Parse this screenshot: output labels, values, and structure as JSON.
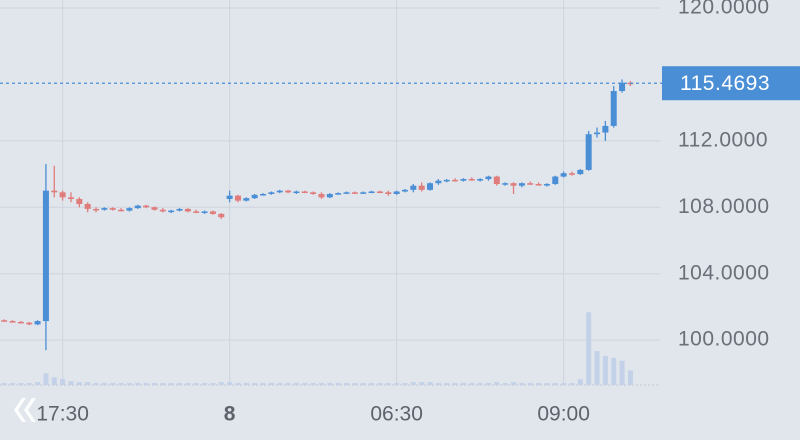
{
  "chart_data": {
    "type": "candlestick",
    "categories": [
      null,
      null,
      null,
      null,
      null,
      null,
      null,
      "17:30",
      null,
      null,
      null,
      null,
      null,
      null,
      null,
      null,
      null,
      null,
      null,
      null,
      null,
      null,
      null,
      null,
      null,
      null,
      null,
      "8",
      null,
      null,
      null,
      null,
      null,
      null,
      null,
      null,
      null,
      null,
      null,
      null,
      null,
      null,
      null,
      null,
      null,
      null,
      null,
      "06:30",
      null,
      null,
      null,
      null,
      null,
      null,
      null,
      null,
      null,
      null,
      null,
      null,
      null,
      null,
      null,
      null,
      null,
      null,
      null,
      "09:00",
      null,
      null,
      null,
      null,
      null,
      null,
      null,
      null
    ],
    "open": [
      101.2,
      101.15,
      101.1,
      101.05,
      100.95,
      101.15,
      109.0,
      108.9,
      108.6,
      108.5,
      108.2,
      107.9,
      107.85,
      107.95,
      107.85,
      107.8,
      107.95,
      108.1,
      108.0,
      107.85,
      107.75,
      107.8,
      107.9,
      107.75,
      107.7,
      107.75,
      107.6,
      108.5,
      108.7,
      108.4,
      108.55,
      108.75,
      108.8,
      108.9,
      109.0,
      108.9,
      108.95,
      108.9,
      108.8,
      108.6,
      108.8,
      108.85,
      108.9,
      108.85,
      108.9,
      108.95,
      108.9,
      108.8,
      108.95,
      109.05,
      109.3,
      109.05,
      109.45,
      109.6,
      109.65,
      109.6,
      109.7,
      109.65,
      109.7,
      109.85,
      109.4,
      109.45,
      109.3,
      109.45,
      109.4,
      109.35,
      109.4,
      109.85,
      110.05,
      110.0,
      110.25,
      112.4,
      112.5,
      112.9,
      115.0,
      115.5
    ],
    "high": [
      101.25,
      101.2,
      101.15,
      101.1,
      101.2,
      110.6,
      110.5,
      109.0,
      108.9,
      108.6,
      108.3,
      108.0,
      108.0,
      108.0,
      107.95,
      108.0,
      108.15,
      108.15,
      108.05,
      107.95,
      107.85,
      107.95,
      107.95,
      107.85,
      107.8,
      107.8,
      107.65,
      109.0,
      108.75,
      108.6,
      108.8,
      108.85,
      108.95,
      109.05,
      109.05,
      109.0,
      109.0,
      108.95,
      108.9,
      108.85,
      108.9,
      108.95,
      108.95,
      108.95,
      109.0,
      109.0,
      109.0,
      109.0,
      109.1,
      109.4,
      109.5,
      109.5,
      109.7,
      109.7,
      109.75,
      109.75,
      109.8,
      109.75,
      109.9,
      109.9,
      109.5,
      109.5,
      109.5,
      109.55,
      109.5,
      109.45,
      109.9,
      110.15,
      110.15,
      110.3,
      112.6,
      112.8,
      113.2,
      115.3,
      115.7,
      115.6
    ],
    "low": [
      101.1,
      101.05,
      101.0,
      100.9,
      100.9,
      99.4,
      108.6,
      108.4,
      108.3,
      108.0,
      107.7,
      107.7,
      107.8,
      107.8,
      107.75,
      107.75,
      107.9,
      107.95,
      107.8,
      107.7,
      107.65,
      107.75,
      107.7,
      107.65,
      107.6,
      107.55,
      107.3,
      108.3,
      108.3,
      108.35,
      108.5,
      108.7,
      108.75,
      108.85,
      108.85,
      108.8,
      108.85,
      108.75,
      108.5,
      108.55,
      108.75,
      108.8,
      108.8,
      108.8,
      108.85,
      108.85,
      108.7,
      108.75,
      108.9,
      108.9,
      108.95,
      109.0,
      109.35,
      109.5,
      109.55,
      109.55,
      109.6,
      109.55,
      109.6,
      109.3,
      109.3,
      108.8,
      109.2,
      109.35,
      109.3,
      109.25,
      109.35,
      109.8,
      109.9,
      109.95,
      110.2,
      112.2,
      112.0,
      112.8,
      114.9,
      115.3
    ],
    "close": [
      101.15,
      101.1,
      101.05,
      100.95,
      101.15,
      109.0,
      108.9,
      108.6,
      108.5,
      108.2,
      107.9,
      107.85,
      107.95,
      107.85,
      107.8,
      107.95,
      108.1,
      108.0,
      107.85,
      107.75,
      107.8,
      107.9,
      107.75,
      107.7,
      107.75,
      107.6,
      107.4,
      108.7,
      108.4,
      108.55,
      108.75,
      108.8,
      108.9,
      109.0,
      108.9,
      108.95,
      108.9,
      108.8,
      108.6,
      108.8,
      108.85,
      108.9,
      108.85,
      108.9,
      108.95,
      108.9,
      108.8,
      108.95,
      109.05,
      109.3,
      109.05,
      109.45,
      109.6,
      109.65,
      109.6,
      109.7,
      109.65,
      109.7,
      109.85,
      109.4,
      109.45,
      109.3,
      109.45,
      109.4,
      109.35,
      109.4,
      109.85,
      110.05,
      110.0,
      110.25,
      112.4,
      112.5,
      112.9,
      115.0,
      115.5,
      115.4693
    ],
    "volume": [
      2,
      2,
      2,
      2,
      3,
      12,
      8,
      6,
      4,
      3,
      3,
      2,
      2,
      2,
      2,
      2,
      2,
      2,
      2,
      2,
      2,
      2,
      2,
      2,
      2,
      2,
      3,
      3,
      2,
      2,
      2,
      2,
      2,
      2,
      2,
      2,
      2,
      2,
      2,
      2,
      2,
      2,
      2,
      2,
      2,
      2,
      2,
      2,
      2,
      3,
      3,
      3,
      2,
      2,
      2,
      2,
      2,
      2,
      2,
      3,
      2,
      3,
      2,
      2,
      2,
      2,
      2,
      2,
      2,
      6,
      75,
      35,
      30,
      28,
      25,
      15
    ],
    "up_color": "#4a8fd6",
    "down_color": "#e07c7c",
    "volume_color": "#c3d2e8",
    "ylim": [
      97.3,
      120.48
    ],
    "yticks": [
      {
        "value": 100,
        "label": "100.0000"
      },
      {
        "value": 104,
        "label": "104.0000"
      },
      {
        "value": 108,
        "label": "108.0000"
      },
      {
        "value": 112,
        "label": "112.0000"
      },
      {
        "value": 120,
        "label": "120.0000"
      }
    ],
    "grid": true,
    "last_price": {
      "value": 115.4693,
      "label": "115.4693"
    }
  }
}
